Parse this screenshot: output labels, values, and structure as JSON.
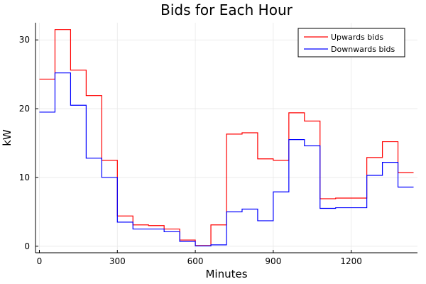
{
  "chart_data": {
    "type": "line",
    "step": true,
    "title": "Bids for Each Hour",
    "xlabel": "Minutes",
    "ylabel": "kW",
    "xlim": [
      -15,
      1455
    ],
    "ylim": [
      -0.95,
      32.5
    ],
    "xticks": [
      0,
      300,
      600,
      900,
      1200
    ],
    "yticks": [
      0,
      10,
      20,
      30
    ],
    "grid": true,
    "legend_position": "top-right",
    "x": [
      0,
      60,
      120,
      180,
      240,
      300,
      360,
      420,
      480,
      540,
      600,
      660,
      720,
      780,
      840,
      900,
      960,
      1020,
      1080,
      1140,
      1200,
      1260,
      1320,
      1380,
      1440
    ],
    "series": [
      {
        "name": "Upwards bids",
        "color": "#ff0000",
        "values": [
          24.3,
          31.5,
          25.6,
          21.9,
          12.5,
          4.4,
          3.1,
          3.0,
          2.5,
          0.9,
          0.1,
          3.1,
          16.3,
          16.5,
          12.7,
          12.5,
          19.4,
          18.2,
          6.9,
          7.0,
          7.0,
          12.9,
          15.2,
          10.7,
          10.7
        ]
      },
      {
        "name": "Downwards bids",
        "color": "#0000ff",
        "values": [
          19.5,
          25.2,
          20.5,
          12.8,
          10.0,
          3.5,
          2.5,
          2.5,
          2.1,
          0.7,
          0.05,
          0.2,
          5.0,
          5.4,
          3.7,
          7.9,
          15.5,
          14.6,
          5.5,
          5.6,
          5.6,
          10.3,
          12.2,
          8.6,
          8.6
        ]
      }
    ]
  }
}
